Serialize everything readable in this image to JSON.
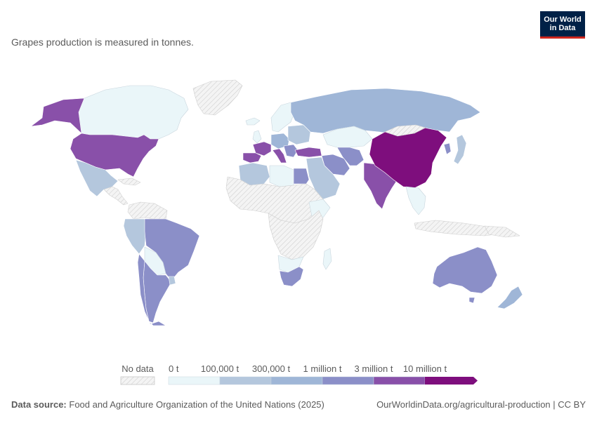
{
  "subtitle": "Grapes production is measured in tonnes.",
  "logo": {
    "line1": "Our World",
    "line2": "in Data"
  },
  "legend": {
    "no_data_label": "No data",
    "ticks": [
      "0 t",
      "100,000 t",
      "300,000 t",
      "1 million t",
      "3 million t",
      "10 million t"
    ],
    "colors": [
      "#eaf6f9",
      "#b4c7dd",
      "#9fb6d7",
      "#8b8fc8",
      "#8950a9",
      "#7e0e7d"
    ],
    "no_data_color": "#e8e8e8"
  },
  "colors": {
    "no_data": "#e4e4e4",
    "bin0": "#eaf6f9",
    "bin1": "#b4c7dd",
    "bin2": "#9fb6d7",
    "bin3": "#8b8fc8",
    "bin4": "#8950a9",
    "bin5": "#7e0e7d",
    "border": "#ffffff",
    "logo_bg": "#002147",
    "logo_accent": "#ce261e"
  },
  "footer": {
    "source_label": "Data source:",
    "source_text": "Food and Agriculture Organization of the United Nations (2025)",
    "url_license": "OurWorldinData.org/agricultural-production | CC BY"
  }
}
